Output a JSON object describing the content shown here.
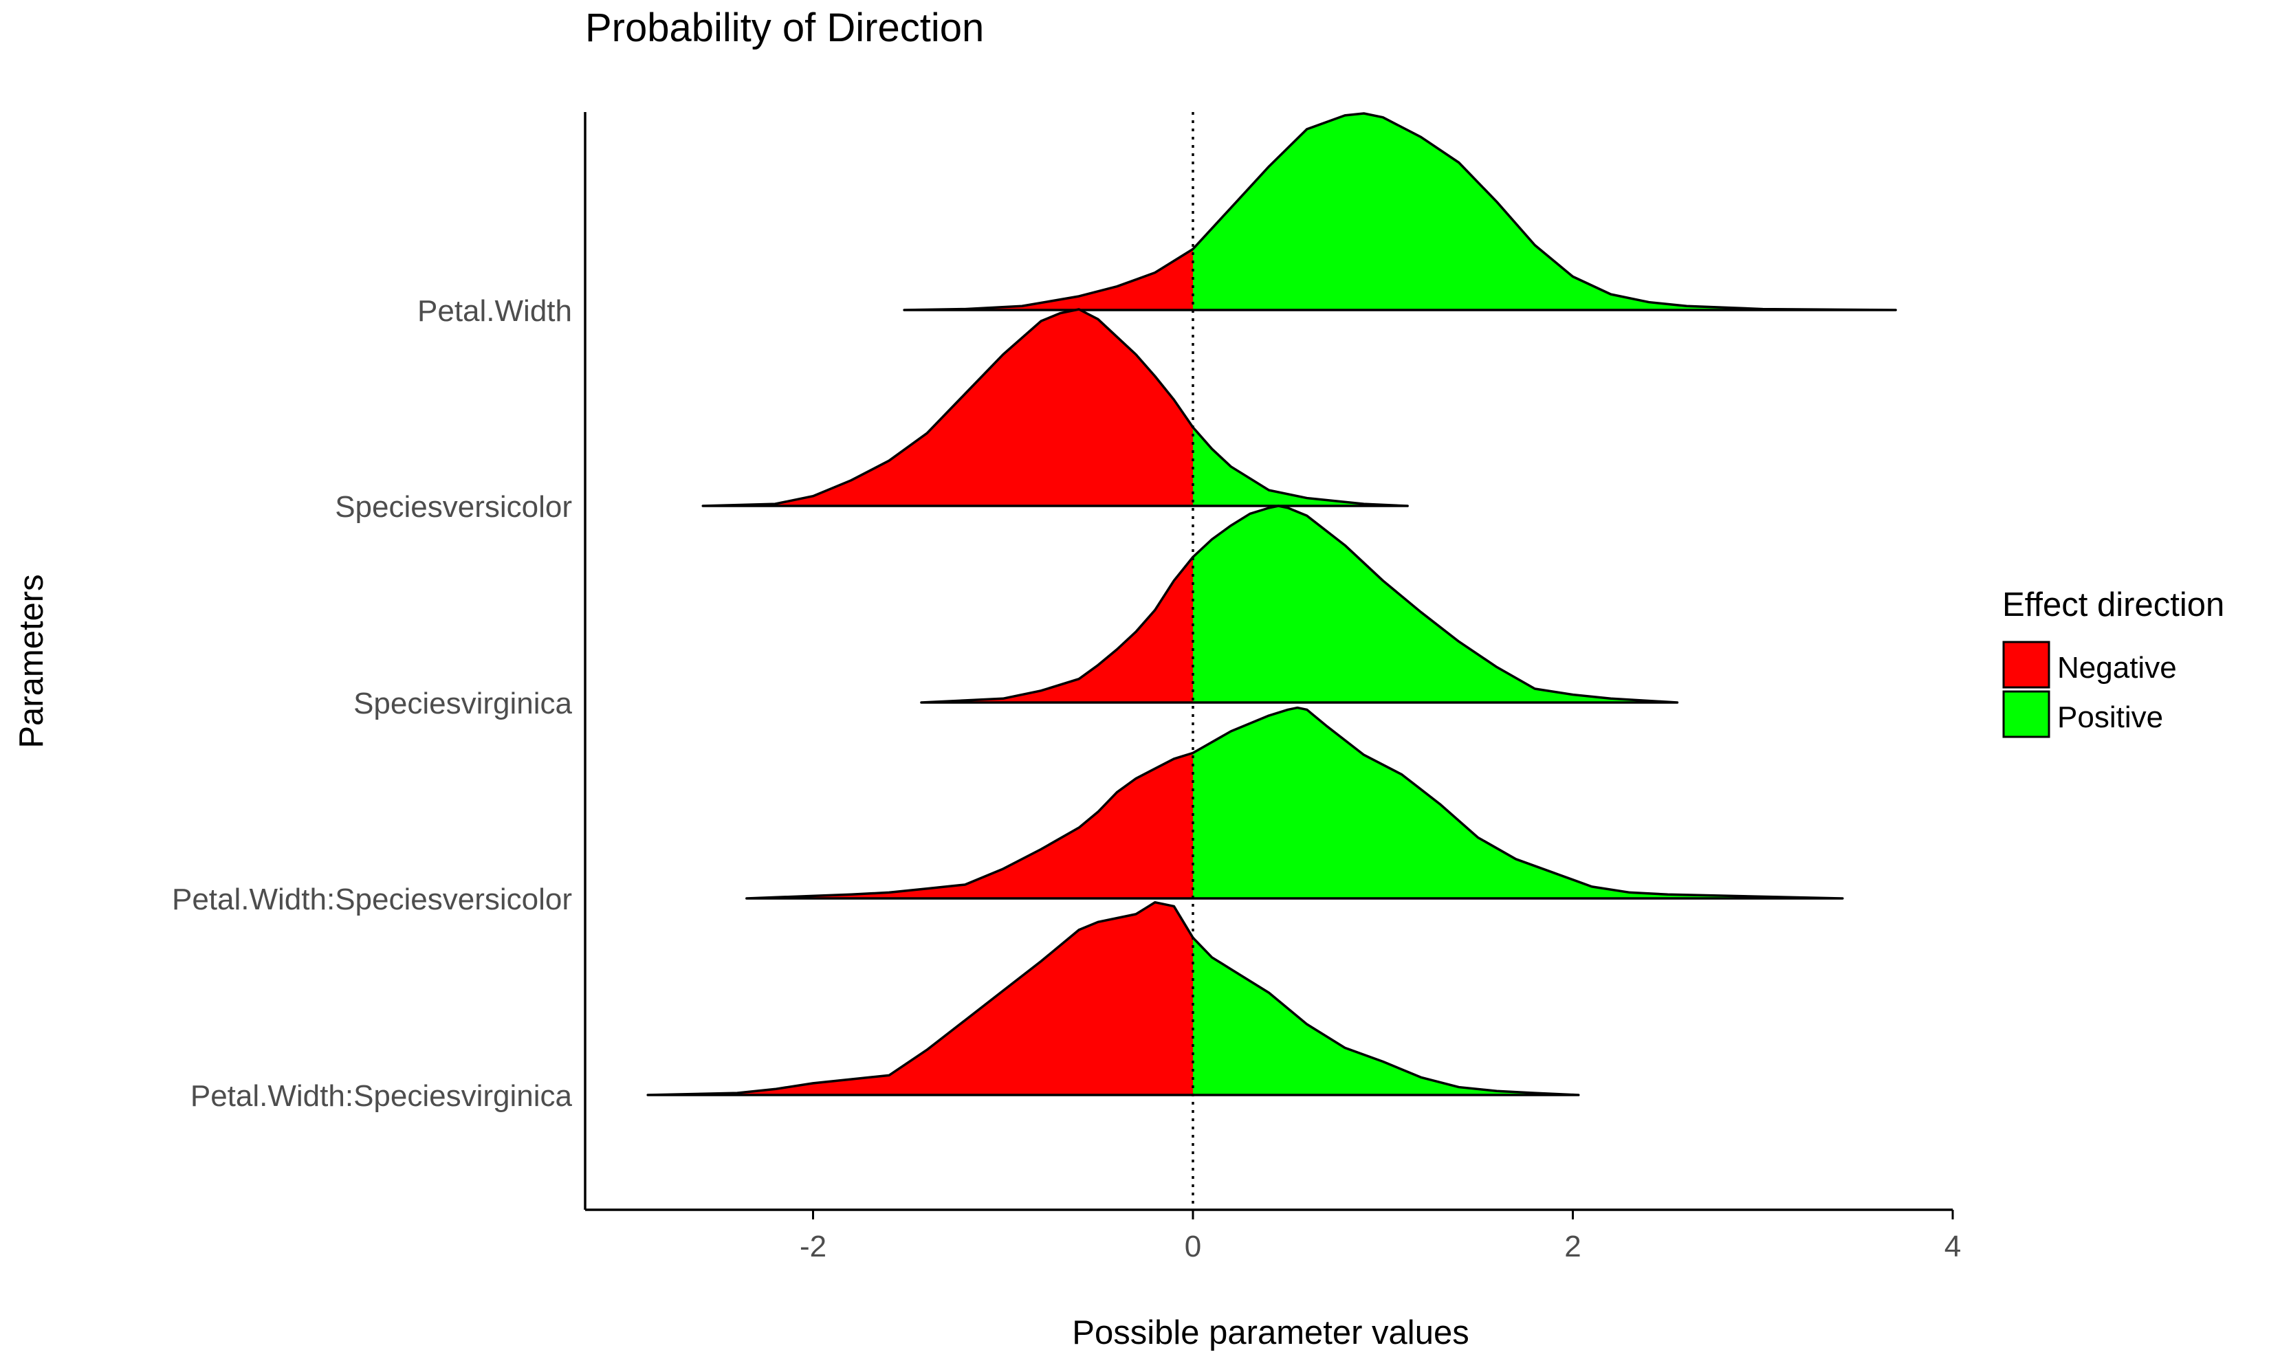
{
  "chart_data": {
    "type": "ridgeline-density",
    "title": "Probability of Direction",
    "xlabel": "Possible parameter values",
    "ylabel": "Parameters",
    "xlim": [
      -3.2,
      4.0
    ],
    "x_ticks": [
      -2,
      0,
      2,
      4
    ],
    "reference_line": 0,
    "grid": false,
    "legend": {
      "title": "Effect direction",
      "placement": "right",
      "entries": [
        {
          "label": "Negative",
          "color": "#ff0000"
        },
        {
          "label": "Positive",
          "color": "#00ff00"
        }
      ]
    },
    "categories": [
      "Petal.Width",
      "Speciesversicolor",
      "Speciesvirginica",
      "Petal.Width:Speciesversicolor",
      "Petal.Width:Speciesvirginica"
    ],
    "series": [
      {
        "x": [
          -1.52,
          -1.2,
          -0.9,
          -0.6,
          -0.4,
          -0.2,
          -0.1,
          0,
          0.2,
          0.4,
          0.6,
          0.8,
          0.9,
          1.0,
          1.2,
          1.4,
          1.6,
          1.8,
          2.0,
          2.2,
          2.4,
          2.6,
          3.0,
          3.7
        ],
        "density": [
          0,
          0.005,
          0.02,
          0.07,
          0.12,
          0.19,
          0.25,
          0.31,
          0.52,
          0.73,
          0.92,
          0.99,
          1.0,
          0.98,
          0.88,
          0.75,
          0.55,
          0.33,
          0.17,
          0.08,
          0.04,
          0.02,
          0.005,
          0
        ]
      },
      {
        "x": [
          -2.58,
          -2.2,
          -2.0,
          -1.8,
          -1.6,
          -1.4,
          -1.2,
          -1.0,
          -0.8,
          -0.7,
          -0.6,
          -0.5,
          -0.4,
          -0.3,
          -0.2,
          -0.1,
          0,
          0.1,
          0.2,
          0.4,
          0.6,
          0.9,
          1.13
        ],
        "density": [
          0,
          0.01,
          0.05,
          0.13,
          0.23,
          0.37,
          0.57,
          0.77,
          0.94,
          0.98,
          1.0,
          0.95,
          0.86,
          0.77,
          0.66,
          0.54,
          0.4,
          0.29,
          0.2,
          0.08,
          0.04,
          0.01,
          0
        ]
      },
      {
        "x": [
          -1.43,
          -1.0,
          -0.8,
          -0.6,
          -0.5,
          -0.4,
          -0.3,
          -0.2,
          -0.1,
          0,
          0.1,
          0.2,
          0.3,
          0.4,
          0.45,
          0.5,
          0.6,
          0.8,
          1.0,
          1.2,
          1.4,
          1.6,
          1.8,
          2.0,
          2.2,
          2.55
        ],
        "density": [
          0,
          0.02,
          0.06,
          0.12,
          0.19,
          0.27,
          0.36,
          0.47,
          0.62,
          0.74,
          0.83,
          0.9,
          0.96,
          0.99,
          1.0,
          0.99,
          0.95,
          0.8,
          0.62,
          0.46,
          0.31,
          0.18,
          0.07,
          0.04,
          0.02,
          0
        ]
      },
      {
        "x": [
          -2.35,
          -1.8,
          -1.6,
          -1.4,
          -1.2,
          -1.0,
          -0.8,
          -0.6,
          -0.5,
          -0.4,
          -0.3,
          -0.2,
          -0.1,
          0,
          0.2,
          0.4,
          0.5,
          0.55,
          0.6,
          0.7,
          0.9,
          1.1,
          1.3,
          1.5,
          1.7,
          1.9,
          2.1,
          2.3,
          2.5,
          3.42
        ],
        "density": [
          0,
          0.02,
          0.03,
          0.05,
          0.07,
          0.15,
          0.25,
          0.36,
          0.44,
          0.54,
          0.61,
          0.66,
          0.71,
          0.74,
          0.85,
          0.93,
          0.96,
          0.97,
          0.96,
          0.88,
          0.73,
          0.63,
          0.48,
          0.31,
          0.2,
          0.13,
          0.06,
          0.03,
          0.02,
          0
        ]
      },
      {
        "x": [
          -2.87,
          -2.4,
          -2.2,
          -2.0,
          -1.8,
          -1.6,
          -1.4,
          -1.2,
          -1.0,
          -0.8,
          -0.6,
          -0.5,
          -0.4,
          -0.3,
          -0.25,
          -0.2,
          -0.1,
          0,
          0.1,
          0.2,
          0.4,
          0.6,
          0.8,
          1.0,
          1.2,
          1.4,
          1.6,
          1.8,
          2.03
        ],
        "density": [
          0,
          0.01,
          0.03,
          0.06,
          0.08,
          0.1,
          0.23,
          0.38,
          0.53,
          0.68,
          0.84,
          0.88,
          0.9,
          0.92,
          0.95,
          0.98,
          0.96,
          0.8,
          0.7,
          0.64,
          0.52,
          0.36,
          0.24,
          0.17,
          0.09,
          0.04,
          0.02,
          0.01,
          0
        ]
      }
    ]
  }
}
